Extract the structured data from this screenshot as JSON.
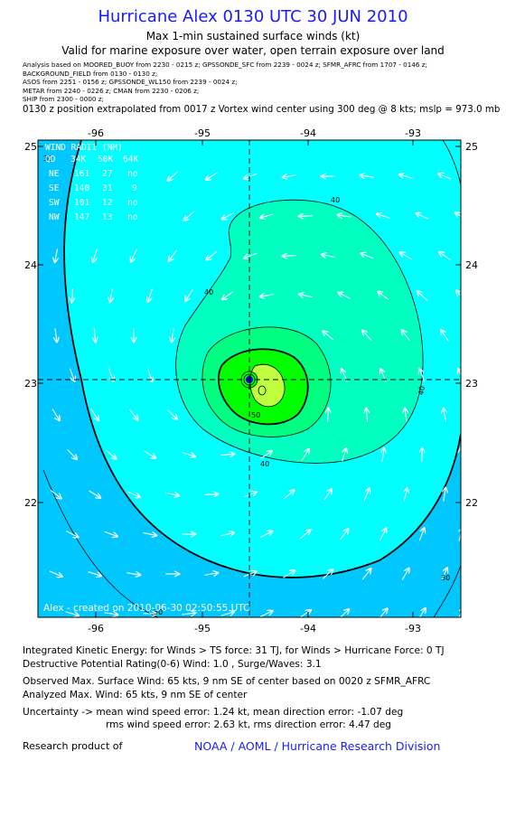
{
  "header": {
    "title": "Hurricane Alex 0130 UTC 30 JUN 2010",
    "subtitle": "Max 1-min sustained surface winds (kt)",
    "validity": "Valid for marine exposure over water, open terrain exposure over land",
    "sources": [
      "Analysis based on  MOORED_BUOY from  2230 - 0215 z;  GPSSONDE_SFC from  2239 - 0024 z;  SFMR_AFRC from  1707 - 0146 z;",
      "BACKGROUND_FIELD from 0130 - 0130 z;",
      "ASOS from  2251 - 0156 z;  GPSSONDE_WL150 from  2239 - 0024 z;",
      "METAR from  2240 - 0226 z;  CMAN from  2230 - 0206 z;",
      "SHIP from  2300 - 0000 z;"
    ],
    "position_note": "0130 z position extrapolated from 0017 z Vortex wind center using 300 deg @ 8 kts; mslp = 973.0 mb"
  },
  "map": {
    "lon_range": [
      -96.5,
      -92.5
    ],
    "lat_range": [
      21,
      25
    ],
    "lon_ticks": [
      "-96",
      "-95",
      "-94",
      "-93"
    ],
    "lat_ticks": [
      "25",
      "24",
      "23",
      "22"
    ],
    "center": {
      "lon": -94.55,
      "lat": 23.03
    },
    "colors": {
      "background": "#00ffff",
      "outer_ring": "#00c8ff",
      "contour_40": "#00ffc0",
      "contour_50": "#00ff80",
      "contour_60": "#00ff00",
      "core": "#c0ff40",
      "eye": "#0000ff"
    },
    "contour_labels": [
      "40",
      "40",
      "40",
      "40",
      "50",
      "30",
      "30",
      "30"
    ],
    "wind_radii": {
      "title": "WIND RADII (NM)",
      "header": [
        "QD",
        "34K",
        "50K",
        "64K"
      ],
      "rows": [
        {
          "quadrant": "NE",
          "r34": "161",
          "r50": "27",
          "r64": "no"
        },
        {
          "quadrant": "SE",
          "r34": "140",
          "r50": "31",
          "r64": "9"
        },
        {
          "quadrant": "SW",
          "r34": "101",
          "r50": "12",
          "r64": "no"
        },
        {
          "quadrant": "NW",
          "r34": "147",
          "r50": "13",
          "r64": "no"
        }
      ]
    },
    "created_label": "Alex - created on 2010-06-30 02:50:55 UTC"
  },
  "info": {
    "ike": "Integrated Kinetic Energy:  for Winds > TS force: 31 TJ,  for Winds > Hurricane Force: 0 TJ",
    "destructive": "Destructive Potential Rating(0-6)   Wind: 1.0 , Surge/Waves: 3.1",
    "observed_max": "Observed Max. Surface Wind: 65 kts, 9 nm SE of center based on 0020 z SFMR_AFRC",
    "analyzed_max": "Analyzed Max. Wind: 65 kts, 9 nm SE of center",
    "uncertainty_1": "Uncertainty -> mean wind speed error: 1.24 kt,   mean direction error:  -1.07 deg",
    "uncertainty_2": "rms wind speed error: 2.63 kt,   rms direction error: 4.47 deg",
    "research_label": "Research product of",
    "noaa": "NOAA / AOML / Hurricane Research Division"
  }
}
